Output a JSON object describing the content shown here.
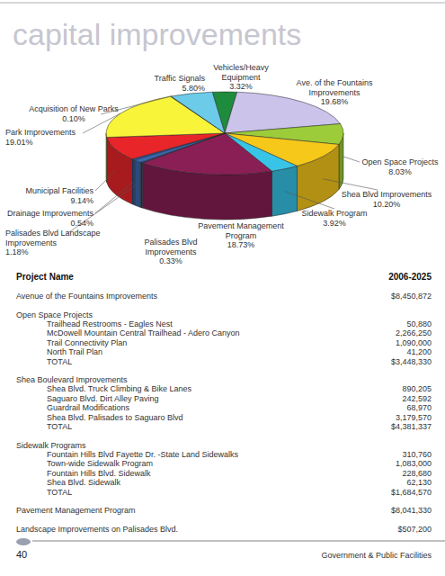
{
  "header": {
    "title": "capital improvements"
  },
  "chart_data": {
    "type": "pie",
    "categories": [
      "Vehicles/Heavy Equipment",
      "Ave. of the Fountains Improvements",
      "Open Space Projects",
      "Shea Blvd Improvements",
      "Sidewalk Program",
      "Pavement Management Program",
      "Palisades Blvd Improvements",
      "Palisades Blvd Landscape Improvements",
      "Drainage Improvements",
      "Municipal Facilities",
      "Park Improvements",
      "Acquisition of New Parks",
      "Traffic Signals"
    ],
    "values": [
      3.32,
      19.68,
      8.03,
      10.2,
      3.92,
      18.73,
      0.33,
      1.18,
      0.54,
      9.14,
      19.01,
      0.1,
      5.8
    ],
    "value_labels": [
      "3.32%",
      "19.68%",
      "8.03%",
      "10.20%",
      "3.92%",
      "18.73%",
      "0.33%",
      "1.18%",
      "0.54%",
      "9.14%",
      "19.01%",
      "0.10%",
      "5.80%"
    ],
    "colors": [
      "#1e8c3c",
      "#cbc3ea",
      "#9ccc3a",
      "#f6c81a",
      "#38c4e6",
      "#8a1f55",
      "#1d3a8c",
      "#3a68b0",
      "#2a56a8",
      "#e8262a",
      "#f8f43a",
      "#6f98cc",
      "#6ccbe8"
    ],
    "data_labels": true
  },
  "table": {
    "columns": [
      "Project Name",
      "2006-2025"
    ],
    "sections": [
      {
        "name": "Avenue of the Fountains Improvements",
        "amount": "$8,450,872"
      },
      {
        "name": "Open Space Projects",
        "items": [
          {
            "name": "Trailhead Restrooms - Eagles Nest",
            "amount": "50,880"
          },
          {
            "name": "McDowell Mountain Central Trailhead - Adero Canyon",
            "amount": "2,266,250"
          },
          {
            "name": "Trail Connectivity Plan",
            "amount": "1,090,000"
          },
          {
            "name": "North Trail Plan",
            "amount": "41,200"
          }
        ],
        "total_label": "TOTAL",
        "total": "$3,448,330"
      },
      {
        "name": "Shea Boulevard Improvements",
        "items": [
          {
            "name": "Shea Blvd. Truck Climbing & Bike Lanes",
            "amount": "890,205"
          },
          {
            "name": "Saguaro Blvd. Dirt Alley Paving",
            "amount": "242,592"
          },
          {
            "name": "Guardrail Modifications",
            "amount": "68,970"
          },
          {
            "name": "Shea Blvd. Palisades to Saguaro Blvd",
            "amount": "3,179,570"
          }
        ],
        "total_label": "TOTAL",
        "total": "$4,381,337"
      },
      {
        "name": "Sidewalk Programs",
        "items": [
          {
            "name": "Fountain Hills Blvd Fayette Dr. -State Land Sidewalks",
            "amount": "310,760"
          },
          {
            "name": "Town-wide Sidewalk Program",
            "amount": "1,083,000"
          },
          {
            "name": "Fountain Hills Blvd. Sidewalk",
            "amount": "228,680"
          },
          {
            "name": "Shea Blvd. Sidewalk",
            "amount": "62,130"
          }
        ],
        "total_label": "TOTAL",
        "total": "$1,684,570"
      },
      {
        "name": "Pavement Management Program",
        "amount": "$8,041,330"
      },
      {
        "name": "Landscape Improvements on Palisades Blvd.",
        "amount": "$507,200"
      }
    ]
  },
  "footer": {
    "page": "40",
    "section": "Government & Public Facilities"
  }
}
